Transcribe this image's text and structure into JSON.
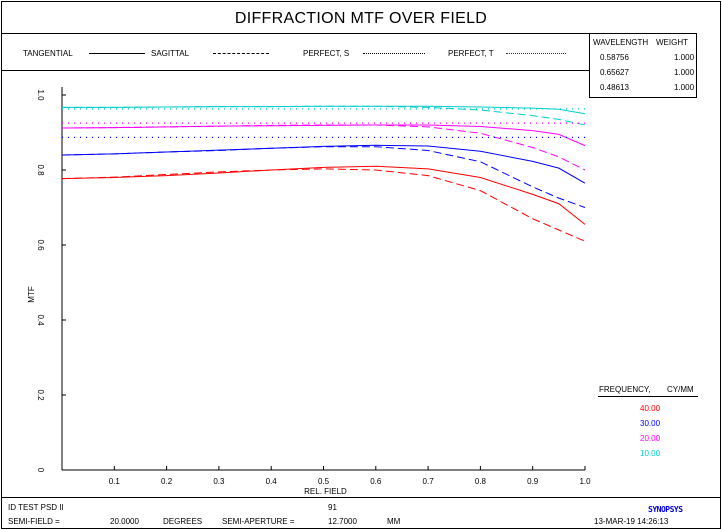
{
  "title": "DIFFRACTION MTF OVER FIELD",
  "legend": {
    "tangential": "TANGENTIAL",
    "sagittal": "SAGITTAL",
    "perfect_s": "PERFECT, S",
    "perfect_t": "PERFECT, T"
  },
  "wavelength_table": {
    "header_wavelength": "WAVELENGTH",
    "header_weight": "WEIGHT",
    "rows": [
      {
        "wavelength": "0.58756",
        "weight": "1.000"
      },
      {
        "wavelength": "0.65627",
        "weight": "1.000"
      },
      {
        "wavelength": "0.48613",
        "weight": "1.000"
      }
    ]
  },
  "frequency_legend": {
    "header_frequency": "FREQUENCY,",
    "header_unit": "CY/MM",
    "items": [
      {
        "value": "40.00",
        "color": "#ff0000"
      },
      {
        "value": "30.00",
        "color": "#0000ff"
      },
      {
        "value": "20.00",
        "color": "#ff00ff"
      },
      {
        "value": "10.00",
        "color": "#00cccc"
      }
    ]
  },
  "footer": {
    "id_label": "ID TEST PSD II",
    "center_number": "91",
    "semi_field_label": "SEMI-FIELD =",
    "semi_field_value": "20.0000",
    "semi_field_unit": "DEGREES",
    "semi_aperture_label": "SEMI-APERTURE =",
    "semi_aperture_value": "12.7000",
    "semi_aperture_unit": "MM",
    "brand": "SYNOPSYS",
    "datetime": "13-MAR-19  14:26:13"
  },
  "chart_data": {
    "type": "line",
    "xlabel": "REL. FIELD",
    "ylabel": "MTF",
    "xlim": [
      0,
      1.0
    ],
    "ylim": [
      0,
      1.0
    ],
    "x_ticks": [
      "0.1",
      "0.2",
      "0.3",
      "0.4",
      "0.5",
      "0.6",
      "0.7",
      "0.8",
      "0.9",
      "1.0"
    ],
    "y_ticks": [
      "0",
      "0.2",
      "0.4",
      "0.6",
      "0.8",
      "1.0"
    ],
    "grid": false,
    "x": [
      0,
      0.1,
      0.2,
      0.3,
      0.4,
      0.5,
      0.6,
      0.7,
      0.8,
      0.9,
      0.95,
      1.0
    ],
    "series": [
      {
        "frequency": "40.00",
        "style": "tangential",
        "color": "#ff0000",
        "values": [
          0.777,
          0.78,
          0.785,
          0.792,
          0.8,
          0.807,
          0.81,
          0.803,
          0.78,
          0.735,
          0.71,
          0.655
        ]
      },
      {
        "frequency": "40.00",
        "style": "sagittal",
        "color": "#ff0000",
        "values": [
          0.777,
          0.781,
          0.788,
          0.795,
          0.8,
          0.803,
          0.8,
          0.785,
          0.745,
          0.67,
          0.64,
          0.61
        ]
      },
      {
        "frequency": "30.00",
        "style": "tangential",
        "color": "#0000ff",
        "values": [
          0.84,
          0.843,
          0.848,
          0.853,
          0.858,
          0.863,
          0.866,
          0.864,
          0.85,
          0.823,
          0.805,
          0.765
        ]
      },
      {
        "frequency": "30.00",
        "style": "sagittal",
        "color": "#0000ff",
        "values": [
          0.84,
          0.843,
          0.848,
          0.852,
          0.858,
          0.862,
          0.862,
          0.852,
          0.822,
          0.755,
          0.725,
          0.7
        ]
      },
      {
        "frequency": "20.00",
        "style": "tangential",
        "color": "#ff00ff",
        "values": [
          0.912,
          0.913,
          0.915,
          0.917,
          0.918,
          0.919,
          0.92,
          0.92,
          0.916,
          0.905,
          0.895,
          0.865
        ]
      },
      {
        "frequency": "20.00",
        "style": "sagittal",
        "color": "#ff00ff",
        "values": [
          0.912,
          0.913,
          0.915,
          0.917,
          0.919,
          0.92,
          0.92,
          0.915,
          0.898,
          0.86,
          0.835,
          0.8
        ]
      },
      {
        "frequency": "10.00",
        "style": "tangential",
        "color": "#00cccc",
        "values": [
          0.967,
          0.967,
          0.968,
          0.969,
          0.969,
          0.97,
          0.97,
          0.97,
          0.968,
          0.965,
          0.962,
          0.95
        ]
      },
      {
        "frequency": "10.00",
        "style": "sagittal",
        "color": "#00cccc",
        "values": [
          0.967,
          0.967,
          0.968,
          0.969,
          0.969,
          0.97,
          0.97,
          0.967,
          0.96,
          0.945,
          0.935,
          0.92
        ]
      },
      {
        "frequency": "10.00",
        "style": "perfect",
        "color": "#00cccc",
        "values": [
          0.963,
          0.963,
          0.963,
          0.963,
          0.963,
          0.963,
          0.963,
          0.963,
          0.963,
          0.963,
          0.963,
          0.963
        ]
      },
      {
        "frequency": "20.00",
        "style": "perfect",
        "color": "#ff00ff",
        "values": [
          0.925,
          0.925,
          0.925,
          0.925,
          0.925,
          0.925,
          0.925,
          0.925,
          0.925,
          0.925,
          0.925,
          0.925
        ]
      },
      {
        "frequency": "30.00",
        "style": "perfect",
        "color": "#0000ff",
        "values": [
          0.887,
          0.887,
          0.887,
          0.887,
          0.887,
          0.887,
          0.887,
          0.887,
          0.887,
          0.887,
          0.887,
          0.887
        ]
      }
    ]
  }
}
